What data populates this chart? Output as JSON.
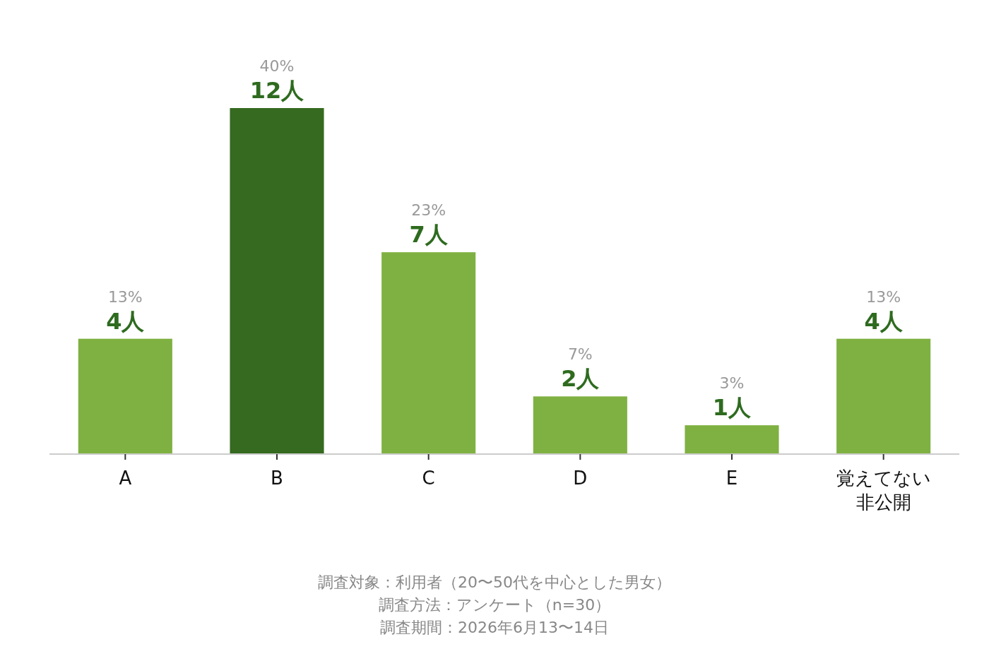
{
  "chart_data": {
    "type": "bar",
    "categories": [
      "A",
      "B",
      "C",
      "D",
      "E",
      "覚えてない非公開"
    ],
    "values": [
      4,
      12,
      7,
      2,
      1,
      4
    ],
    "colors": [
      "#7fb142",
      "#356a20",
      "#7fb142",
      "#7fb142",
      "#7fb142",
      "#7fb142"
    ],
    "value_labels": [
      "4人",
      "12人",
      "7人",
      "2人",
      "1人",
      "4人"
    ],
    "annotations": [
      {
        "text": "13%",
        "x": "A",
        "y": 4
      },
      {
        "text": "40%",
        "x": "B",
        "y": 12
      },
      {
        "text": "23%",
        "x": "C",
        "y": 7
      },
      {
        "text": "7%",
        "x": "D",
        "y": 2
      },
      {
        "text": "3%",
        "x": "E",
        "y": 1
      },
      {
        "text": "13%",
        "x": "覚えてない非公開",
        "y": 4
      },
      "調査対象：利用者（20〜50代を中心とした男女）",
      "調査方法：アンケート（n=30）",
      "調査期間：2026年6月13〜14日"
    ]
  }
}
